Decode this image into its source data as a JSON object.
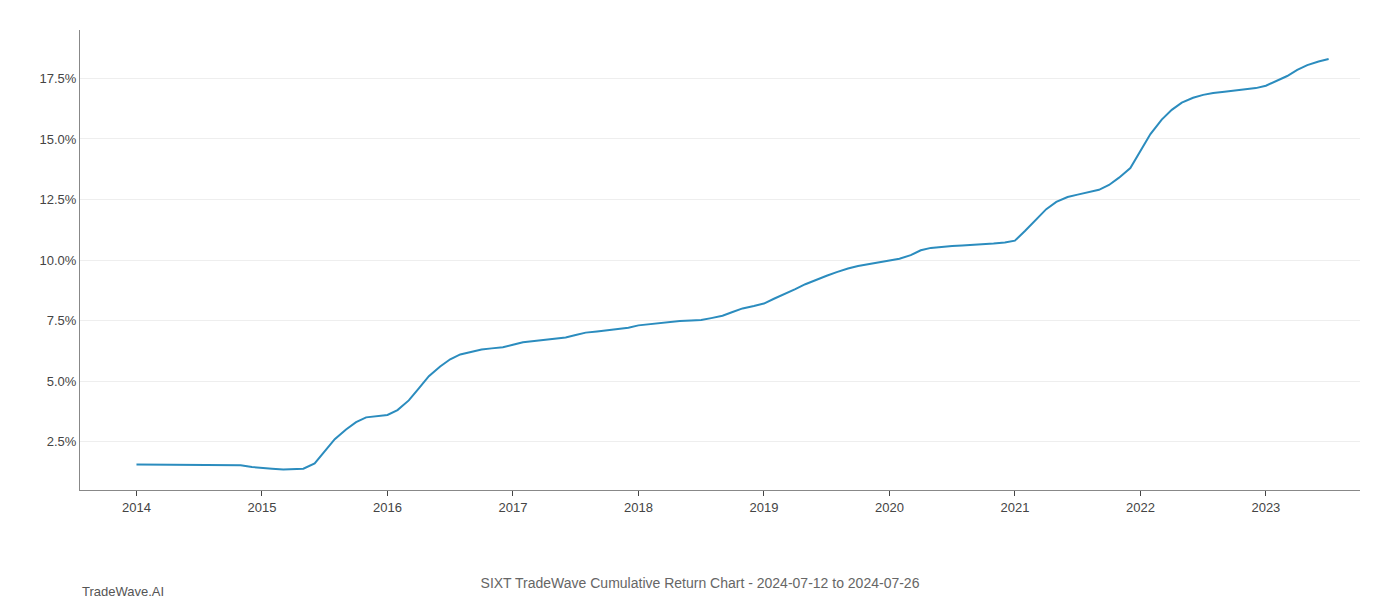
{
  "chart_data": {
    "type": "line",
    "title": "SIXT TradeWave Cumulative Return Chart - 2024-07-12 to 2024-07-26",
    "annotations": [
      {
        "text": "TradeWave.AI"
      }
    ],
    "color": "#2b8cbe",
    "x": [
      2014.0,
      2014.08,
      2014.17,
      2014.25,
      2014.33,
      2014.42,
      2014.5,
      2014.58,
      2014.67,
      2014.75,
      2014.83,
      2014.92,
      2015.0,
      2015.08,
      2015.17,
      2015.25,
      2015.33,
      2015.42,
      2015.5,
      2015.58,
      2015.67,
      2015.75,
      2015.83,
      2015.92,
      2016.0,
      2016.08,
      2016.17,
      2016.25,
      2016.33,
      2016.42,
      2016.5,
      2016.58,
      2016.67,
      2016.75,
      2016.83,
      2016.92,
      2017.0,
      2017.08,
      2017.17,
      2017.25,
      2017.33,
      2017.42,
      2017.5,
      2017.58,
      2017.67,
      2017.75,
      2017.83,
      2017.92,
      2018.0,
      2018.08,
      2018.17,
      2018.25,
      2018.33,
      2018.42,
      2018.5,
      2018.58,
      2018.67,
      2018.75,
      2018.83,
      2018.92,
      2019.0,
      2019.08,
      2019.17,
      2019.25,
      2019.33,
      2019.42,
      2019.5,
      2019.58,
      2019.67,
      2019.75,
      2019.83,
      2019.92,
      2020.0,
      2020.08,
      2020.17,
      2020.25,
      2020.33,
      2020.42,
      2020.5,
      2020.58,
      2020.67,
      2020.75,
      2020.83,
      2020.92,
      2021.0,
      2021.08,
      2021.17,
      2021.25,
      2021.33,
      2021.42,
      2021.5,
      2021.58,
      2021.67,
      2021.75,
      2021.83,
      2021.92,
      2022.0,
      2022.08,
      2022.17,
      2022.25,
      2022.33,
      2022.42,
      2022.5,
      2022.58,
      2022.67,
      2022.75,
      2022.83,
      2022.92,
      2023.0,
      2023.08,
      2023.17,
      2023.25,
      2023.33,
      2023.42,
      2023.5
    ],
    "values": [
      1.55,
      1.55,
      1.52,
      1.52,
      1.52,
      1.52,
      1.52,
      1.52,
      1.52,
      1.52,
      1.52,
      1.45,
      1.4,
      1.38,
      1.35,
      1.35,
      1.38,
      1.6,
      2.1,
      2.6,
      3.0,
      3.3,
      3.5,
      3.55,
      3.6,
      3.8,
      4.2,
      4.7,
      5.2,
      5.6,
      5.9,
      6.1,
      6.2,
      6.3,
      6.35,
      6.4,
      6.5,
      6.6,
      6.65,
      6.7,
      6.75,
      6.8,
      6.9,
      7.0,
      7.05,
      7.1,
      7.15,
      7.2,
      7.3,
      7.35,
      7.4,
      7.45,
      7.48,
      7.5,
      7.52,
      7.6,
      7.7,
      7.85,
      8.0,
      8.1,
      8.2,
      8.4,
      8.6,
      8.8,
      9.0,
      9.2,
      9.35,
      9.5,
      9.65,
      9.75,
      9.82,
      9.88,
      9.95,
      10.05,
      10.2,
      10.4,
      10.5,
      10.55,
      10.58,
      10.6,
      10.62,
      10.65,
      10.68,
      10.72,
      10.8,
      11.2,
      11.7,
      12.1,
      12.4,
      12.6,
      12.7,
      12.8,
      12.9,
      13.1,
      13.4,
      13.8,
      14.5,
      15.2,
      15.8,
      16.2,
      16.5,
      16.7,
      16.82,
      16.9,
      16.95,
      17.0,
      17.05,
      17.1,
      17.2,
      17.4,
      17.6,
      17.85,
      18.05,
      18.2,
      18.3
    ],
    "xlim": [
      2013.55,
      2023.75
    ],
    "xticks": [
      2014,
      2015,
      2016,
      2017,
      2018,
      2019,
      2020,
      2021,
      2022,
      2023
    ],
    "ylim": [
      0.5,
      19.5
    ],
    "yticks": [
      {
        "value": 2.5,
        "label": "2.5%"
      },
      {
        "value": 5.0,
        "label": "5.0%"
      },
      {
        "value": 7.5,
        "label": "7.5%"
      },
      {
        "value": 10.0,
        "label": "10.0%"
      },
      {
        "value": 12.5,
        "label": "12.5%"
      },
      {
        "value": 15.0,
        "label": "15.0%"
      },
      {
        "value": 17.5,
        "label": "17.5%"
      }
    ],
    "grid": "y"
  }
}
